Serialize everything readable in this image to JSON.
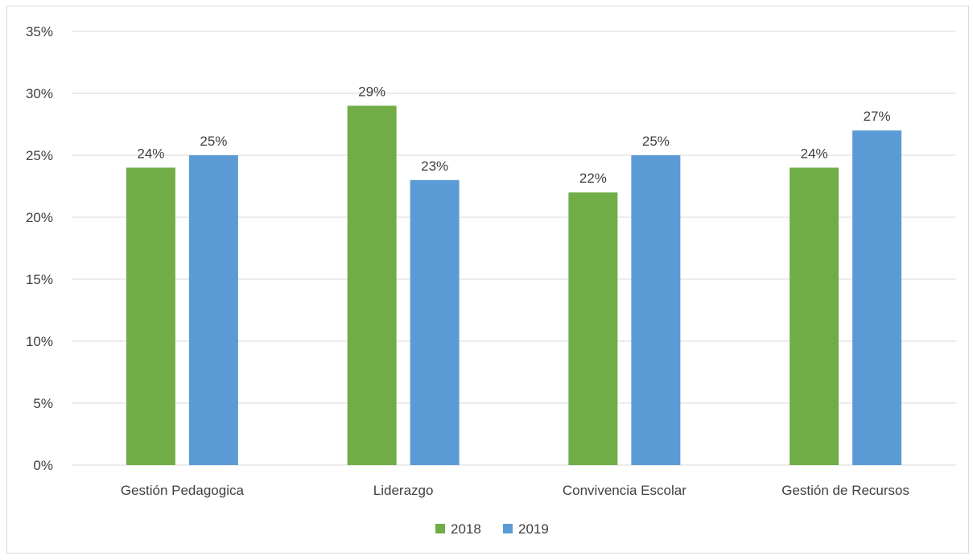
{
  "chart_data": {
    "type": "bar",
    "title": "",
    "xlabel": "",
    "ylabel": "",
    "categories": [
      "Gestión Pedagogica",
      "Liderazgo",
      "Convivencia Escolar",
      "Gestión de Recursos"
    ],
    "series": [
      {
        "name": "2018",
        "color": "#70ad47",
        "values": [
          24,
          29,
          22,
          24
        ],
        "labels": [
          "24%",
          "29%",
          "22%",
          "24%"
        ]
      },
      {
        "name": "2019",
        "color": "#5b9bd5",
        "values": [
          25,
          23,
          25,
          27
        ],
        "labels": [
          "25%",
          "23%",
          "25%",
          "27%"
        ]
      }
    ],
    "ylim": [
      0,
      35
    ],
    "yticks": [
      0,
      5,
      10,
      15,
      20,
      25,
      30,
      35
    ],
    "ytick_labels": [
      "0%",
      "5%",
      "10%",
      "15%",
      "20%",
      "25%",
      "30%",
      "35%"
    ],
    "grid": true,
    "legend_position": "bottom-center",
    "colors": {
      "gridline": "#d9d9d9",
      "axis": "#d9d9d9",
      "text": "#404040"
    }
  }
}
